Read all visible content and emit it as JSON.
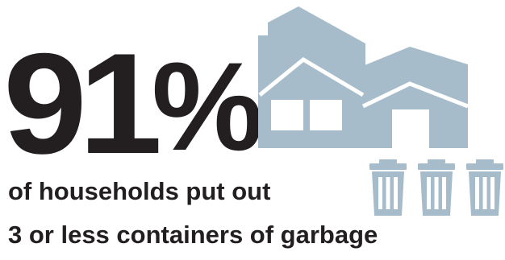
{
  "stat": {
    "number": "91",
    "percent": "%"
  },
  "caption": {
    "line1": "of households put out",
    "line2": "3 or less containers of garbage"
  },
  "icons": {
    "house": "house-icon",
    "bin": "garbage-bin-icon",
    "bin_count": 3
  },
  "colors": {
    "text": "#231f20",
    "icon": "#a6bccb",
    "background": "#ffffff"
  }
}
